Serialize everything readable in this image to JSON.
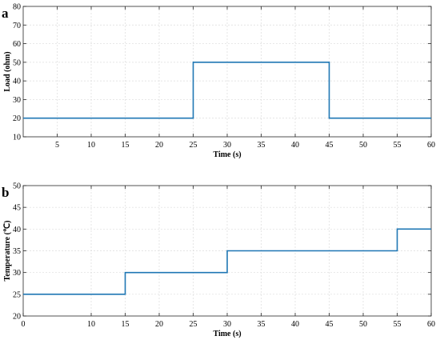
{
  "chart_data": [
    {
      "type": "line",
      "panel_label": "a",
      "xlabel": "Time (s)",
      "ylabel": "Load (ohm)",
      "xlim": [
        0,
        60
      ],
      "ylim": [
        10,
        80
      ],
      "xticks": [
        5,
        10,
        15,
        20,
        25,
        30,
        35,
        40,
        45,
        50,
        55,
        60
      ],
      "yticks": [
        10,
        20,
        30,
        40,
        50,
        60,
        70,
        80
      ],
      "grid": true,
      "step": true,
      "color": "#1f77b4",
      "series": [
        {
          "x": [
            0,
            25,
            25,
            45,
            45,
            60
          ],
          "y": [
            20,
            20,
            50,
            50,
            20,
            20
          ]
        }
      ]
    },
    {
      "type": "line",
      "panel_label": "b",
      "xlabel": "Time (s)",
      "ylabel": "Temperature (℃)",
      "xlim": [
        0,
        60
      ],
      "ylim": [
        20,
        50
      ],
      "xticks": [
        0,
        10,
        15,
        20,
        25,
        30,
        35,
        40,
        45,
        50,
        55,
        60
      ],
      "yticks": [
        20,
        25,
        30,
        35,
        40,
        45,
        50
      ],
      "grid": true,
      "step": true,
      "color": "#1f77b4",
      "series": [
        {
          "x": [
            0,
            15,
            15,
            30,
            30,
            55,
            55,
            60
          ],
          "y": [
            25,
            25,
            30,
            30,
            35,
            35,
            40,
            40
          ]
        }
      ]
    }
  ]
}
